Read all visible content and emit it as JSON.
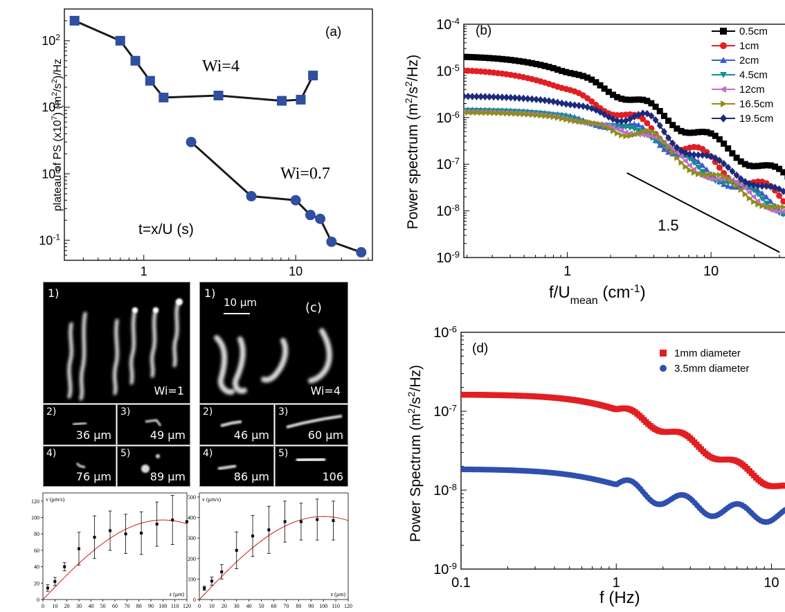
{
  "colors": {
    "wi4": "#2f4fa0",
    "wi07": "#2f4fa0",
    "line": "#1a1a1a",
    "b_series": [
      "#000000",
      "#e11f22",
      "#3b5ec8",
      "#138f8f",
      "#c070c0",
      "#8e8e1a",
      "#1c2a7c"
    ],
    "d_series": [
      "#e11f22",
      "#2f4fb0"
    ],
    "fit": "#d01818"
  },
  "chart_data": [
    {
      "id": "a",
      "type": "line",
      "panel_label": "(a)",
      "xlabel": "t=x/U (s)",
      "ylabel": "plateau of PS (x10^7)  (m^2/s^2)/Hz",
      "x_scale": "log",
      "y_scale": "log",
      "xlim": [
        0.3,
        32
      ],
      "ylim": [
        0.05,
        300
      ],
      "x_ticks": [
        1,
        10
      ],
      "x_tick_labels": [
        "1",
        "10"
      ],
      "y_ticks": [
        0.1,
        1,
        10,
        100
      ],
      "y_tick_labels": [
        "10^-1",
        "10^0",
        "10^1",
        "10^2"
      ],
      "series": [
        {
          "name": "Wi=4",
          "marker": "square",
          "x": [
            0.35,
            0.7,
            0.88,
            1.1,
            1.35,
            3.1,
            8.1,
            10.8,
            13.0
          ],
          "y": [
            200,
            100,
            50,
            25,
            14,
            15,
            12.5,
            13,
            30
          ]
        },
        {
          "name": "Wi=0.7",
          "marker": "circle",
          "x": [
            2.05,
            5.1,
            10.0,
            12.5,
            14.5,
            17.2,
            27.0
          ],
          "y": [
            3.0,
            0.46,
            0.4,
            0.24,
            0.21,
            0.095,
            0.066
          ]
        }
      ]
    },
    {
      "id": "b",
      "type": "line",
      "panel_label": "(b)",
      "xlabel": "f/U_mean (cm^-1)",
      "ylabel": "Power spectrum (m^2/s^2/Hz)",
      "x_scale": "log",
      "y_scale": "log",
      "xlim": [
        0.19,
        35
      ],
      "ylim": [
        1e-09,
        0.0001
      ],
      "x_ticks": [
        1,
        10
      ],
      "x_tick_labels": [
        "1",
        "10"
      ],
      "y_ticks": [
        1e-09,
        1e-08,
        1e-07,
        1e-06,
        1e-05,
        0.0001
      ],
      "y_tick_labels": [
        "10^-9",
        "10^-8",
        "10^-7",
        "10^-6",
        "10^-5",
        "10^-4"
      ],
      "legend_position": "top-right",
      "annotation": {
        "text": "1.5",
        "line_x": [
          2.6,
          30
        ],
        "line_y": [
          6.5e-08,
          1.3e-09
        ]
      },
      "series": [
        {
          "name": "0.5cm",
          "marker": "square",
          "plateau": 2.1e-05,
          "knee": 0.75,
          "slope": 1.6,
          "wiggle": 0.14
        },
        {
          "name": "1cm",
          "marker": "circle",
          "plateau": 1.1e-05,
          "knee": 0.62,
          "slope": 1.65,
          "wiggle": 0.18
        },
        {
          "name": "2cm",
          "marker": "triangle-up",
          "plateau": 1.5e-06,
          "knee": 1.35,
          "slope": 1.55,
          "wiggle": 0.12
        },
        {
          "name": "4.5cm",
          "marker": "triangle-down",
          "plateau": 1.45e-06,
          "knee": 1.35,
          "slope": 1.55,
          "wiggle": 0.12
        },
        {
          "name": "12cm",
          "marker": "triangle-left",
          "plateau": 1.35e-06,
          "knee": 1.35,
          "slope": 1.55,
          "wiggle": 0.12
        },
        {
          "name": "16.5cm",
          "marker": "triangle-right",
          "plateau": 1.3e-06,
          "knee": 1.35,
          "slope": 1.55,
          "wiggle": 0.12
        },
        {
          "name": "19.5cm",
          "marker": "diamond",
          "plateau": 2.9e-06,
          "knee": 1.2,
          "slope": 1.5,
          "wiggle": 0.1
        }
      ]
    },
    {
      "id": "d",
      "type": "scatter",
      "panel_label": "(d)",
      "xlabel": "f (Hz)",
      "ylabel": "Power Spectrum (m^2/s^2/Hz)",
      "x_scale": "log",
      "y_scale": "log",
      "xlim": [
        0.1,
        13
      ],
      "ylim": [
        1e-09,
        1e-06
      ],
      "x_ticks": [
        0.1,
        1,
        10
      ],
      "x_tick_labels": [
        "0.1",
        "1",
        "10"
      ],
      "y_ticks": [
        1e-09,
        1e-08,
        1e-07,
        1e-06
      ],
      "y_tick_labels": [
        "10^-9",
        "10^-8",
        "10^-7",
        "10^-6"
      ],
      "legend_position": "top-right",
      "series": [
        {
          "name": "1mm diameter",
          "marker": "square",
          "plateau": 1.6e-07,
          "knee": 0.95,
          "slope": 1.2,
          "floor": 3e-09
        },
        {
          "name": "3.5mm diameter",
          "marker": "circle",
          "plateau": 1.4e-08,
          "knee": 0.8,
          "slope": 1.4,
          "floor": 4.5e-09
        }
      ]
    },
    {
      "id": "c-left",
      "type": "scatter",
      "xlabel": "z (μm)",
      "ylabel": "v (μm/s)",
      "xlim": [
        0,
        120
      ],
      "ylim": [
        0,
        130
      ],
      "x_ticks": [
        0,
        10,
        20,
        30,
        40,
        50,
        60,
        70,
        80,
        90,
        100,
        110,
        120
      ],
      "y_ticks": [
        0,
        20,
        40,
        60,
        80,
        100,
        120
      ],
      "x": [
        4,
        10,
        18,
        30,
        43,
        56,
        69,
        82,
        95,
        108,
        120
      ],
      "y": [
        14,
        22,
        40,
        62,
        76,
        84,
        80,
        81,
        92,
        97,
        95
      ],
      "err": [
        4,
        5,
        5,
        20,
        26,
        24,
        24,
        26,
        27,
        30,
        0
      ],
      "fit": {
        "peak_x": 100,
        "peak_y": 97
      }
    },
    {
      "id": "c-right",
      "type": "scatter",
      "xlabel": "z (μm)",
      "ylabel": "v (μm/s)",
      "xlim": [
        0,
        120
      ],
      "ylim": [
        0,
        520
      ],
      "x_ticks": [
        0,
        10,
        20,
        30,
        40,
        50,
        60,
        70,
        80,
        90,
        100,
        110,
        120
      ],
      "y_ticks": [
        0,
        100,
        200,
        300,
        400,
        500
      ],
      "x": [
        4,
        10,
        18,
        30,
        43,
        56,
        69,
        82,
        95,
        108
      ],
      "y": [
        55,
        90,
        135,
        240,
        310,
        340,
        380,
        380,
        390,
        385
      ],
      "err": [
        10,
        20,
        35,
        90,
        100,
        115,
        100,
        90,
        100,
        95
      ],
      "fit": {
        "peak_x": 100,
        "peak_y": 405
      }
    }
  ],
  "annotations": {
    "wi4": "Wi=4",
    "wi07": "Wi=0.7",
    "slope": "1.5"
  },
  "panel_c": {
    "label": "(c)",
    "scale_bar": "10 μm",
    "left_main_label": "1)",
    "left_main_wi": "Wi=1",
    "right_main_label": "1)",
    "right_main_wi": "Wi=4",
    "left_small": [
      {
        "num": "2)",
        "size": "36 μm"
      },
      {
        "num": "3)",
        "size": "49 μm"
      },
      {
        "num": "4)",
        "size": "76 μm"
      },
      {
        "num": "5)",
        "size": "89 μm"
      }
    ],
    "right_small": [
      {
        "num": "2)",
        "size": "46 μm"
      },
      {
        "num": "3)",
        "size": "60 μm"
      },
      {
        "num": "4)",
        "size": "86 μm"
      },
      {
        "num": "5)",
        "size": "106"
      }
    ]
  }
}
